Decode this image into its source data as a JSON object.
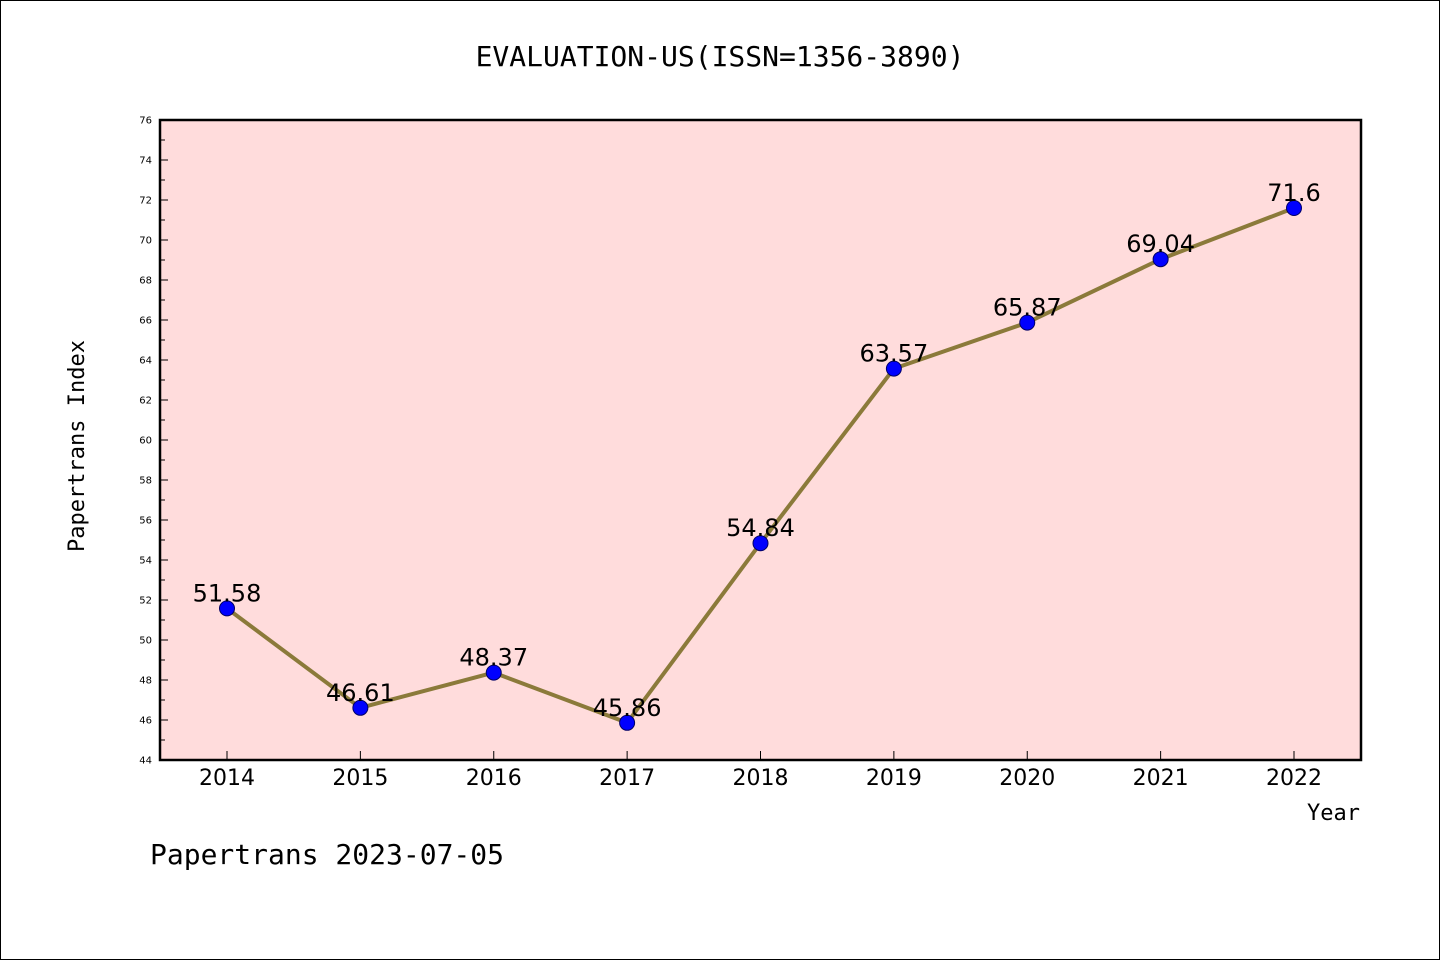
{
  "chart_data": {
    "type": "line",
    "title": "EVALUATION-US(ISSN=1356-3890)",
    "xlabel": "Year",
    "ylabel": "Papertrans Index",
    "categories": [
      "2014",
      "2015",
      "2016",
      "2017",
      "2018",
      "2019",
      "2020",
      "2021",
      "2022"
    ],
    "series": [
      {
        "values": [
          51.58,
          46.61,
          48.37,
          45.86,
          54.84,
          63.57,
          65.87,
          69.04,
          71.6
        ],
        "labels": [
          "51.58",
          "46.61",
          "48.37",
          "45.86",
          "54.84",
          "63.57",
          "65.87",
          "69.04",
          "71.6"
        ]
      }
    ],
    "ylim": [
      44,
      76
    ],
    "yticks": [
      "44",
      "46",
      "48",
      "50",
      "52",
      "54",
      "56",
      "58",
      "60",
      "62",
      "64",
      "66",
      "68",
      "70",
      "72",
      "74",
      "76"
    ],
    "grid": false,
    "colors": {
      "plot_background": "#ffdcdc",
      "line": "#8b7a3a",
      "marker": "#0000ff",
      "marker_edge": "#000066"
    }
  },
  "footer": {
    "text": "Papertrans 2023-07-05"
  }
}
